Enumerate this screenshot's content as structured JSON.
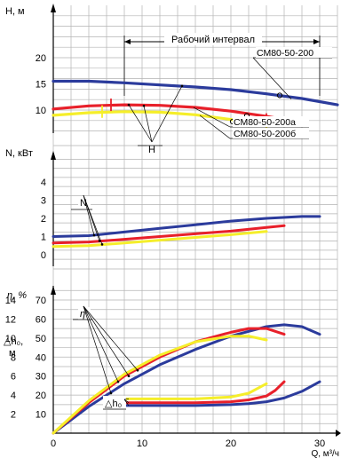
{
  "chart_data": {
    "type": "line",
    "x_axis": {
      "label": "Q, м³/ч",
      "ticks": [
        0,
        10,
        20,
        30
      ],
      "range": [
        0,
        32
      ]
    },
    "working_interval": {
      "label": "Рабочий интервал",
      "x_start": 8,
      "x_end": 30
    },
    "colors": {
      "СМ80-50-200": "#2b3b9c",
      "СМ80-50-200а": "#e8202a",
      "СМ80-50-200б": "#f5ee2a"
    },
    "panels": [
      {
        "id": "head",
        "axis_title": "H, м",
        "ticks": [
          10,
          15,
          20
        ],
        "range": [
          6,
          28
        ],
        "series_marker": "H",
        "series": [
          {
            "name": "СМ80-50-200",
            "color": "#2b3b9c",
            "x": [
              0,
              4,
              8,
              12,
              16,
              20,
              24,
              28,
              32
            ],
            "y": [
              15.5,
              15.5,
              15.2,
              14.8,
              14.4,
              13.9,
              13.1,
              12.2,
              11.0
            ]
          },
          {
            "name": "СМ80-50-200а",
            "color": "#e8202a",
            "x": [
              0,
              4,
              8,
              12,
              16,
              20,
              24,
              26
            ],
            "y": [
              10.2,
              10.8,
              11.0,
              10.9,
              10.5,
              9.8,
              8.8,
              8.2
            ]
          },
          {
            "name": "СМ80-50-200б",
            "color": "#f5ee2a",
            "x": [
              0,
              4,
              8,
              12,
              16,
              20,
              24
            ],
            "y": [
              9.0,
              9.5,
              9.7,
              9.6,
              9.1,
              8.2,
              7.0
            ]
          }
        ],
        "labels": [
          "СМ80-50-200",
          "СМ80-50-200а",
          "СМ80-50-200б"
        ]
      },
      {
        "id": "power",
        "axis_title": "N, кВт",
        "ticks": [
          0,
          1,
          2,
          3,
          4
        ],
        "range": [
          -0.3,
          5.3
        ],
        "series_marker": "N",
        "series": [
          {
            "name": "СМ80-50-200",
            "color": "#2b3b9c",
            "x": [
              0,
              4,
              8,
              12,
              16,
              20,
              24,
              28,
              30
            ],
            "y": [
              1.0,
              1.05,
              1.25,
              1.45,
              1.65,
              1.85,
              2.0,
              2.1,
              2.1
            ]
          },
          {
            "name": "СМ80-50-200а",
            "color": "#e8202a",
            "x": [
              0,
              4,
              8,
              12,
              16,
              20,
              24,
              26
            ],
            "y": [
              0.65,
              0.7,
              0.85,
              1.0,
              1.15,
              1.3,
              1.5,
              1.6
            ]
          },
          {
            "name": "СМ80-50-200б",
            "color": "#f5ee2a",
            "x": [
              0,
              4,
              8,
              12,
              16,
              20,
              24
            ],
            "y": [
              0.45,
              0.5,
              0.65,
              0.8,
              0.95,
              1.1,
              1.28
            ]
          }
        ]
      },
      {
        "id": "efficiency_npsh",
        "axis_title": "η, %",
        "secondary_axis_title": "△h₀, м",
        "ticks": [
          0,
          10,
          20,
          30,
          40,
          50,
          60,
          70
        ],
        "secondary_ticks": [
          2,
          4,
          6,
          8,
          10,
          12,
          14
        ],
        "range": [
          0,
          75
        ],
        "series_marker": "η",
        "secondary_series_marker": "△h₀",
        "efficiency_series": [
          {
            "name": "СМ80-50-200",
            "color": "#2b3b9c",
            "x": [
              0,
              4,
              8,
              12,
              16,
              20,
              24,
              26,
              28,
              30
            ],
            "y": [
              0,
              14,
              26,
              36,
              44,
              51,
              56,
              57,
              56,
              52
            ]
          },
          {
            "name": "СМ80-50-200а",
            "color": "#e8202a",
            "x": [
              0,
              4,
              8,
              12,
              16,
              20,
              22,
              24,
              26
            ],
            "y": [
              0,
              16,
              30,
              40,
              48,
              53,
              55,
              55,
              52
            ]
          },
          {
            "name": "СМ80-50-200б",
            "color": "#f5ee2a",
            "x": [
              0,
              4,
              8,
              12,
              16,
              20,
              22,
              24
            ],
            "y": [
              0,
              17,
              31,
              41,
              48,
              51,
              51,
              49
            ]
          }
        ],
        "npsh_series": [
          {
            "name": "СМ80-50-200",
            "color": "#2b3b9c",
            "x": [
              8,
              12,
              16,
              20,
              22,
              24,
              26,
              28,
              30
            ],
            "y": [
              14.5,
              14.5,
              14.5,
              15,
              15.5,
              16.5,
              18.5,
              22,
              27
            ]
          },
          {
            "name": "СМ80-50-200а",
            "color": "#e8202a",
            "x": [
              8,
              12,
              16,
              20,
              22,
              24,
              25,
              26
            ],
            "y": [
              16,
              16,
              16,
              16.5,
              17.5,
              19.5,
              22.5,
              27
            ]
          },
          {
            "name": "СМ80-50-200б",
            "color": "#f5ee2a",
            "x": [
              8,
              12,
              16,
              20,
              22,
              24
            ],
            "y": [
              18,
              18,
              18,
              19,
              21,
              26
            ]
          }
        ]
      }
    ]
  }
}
